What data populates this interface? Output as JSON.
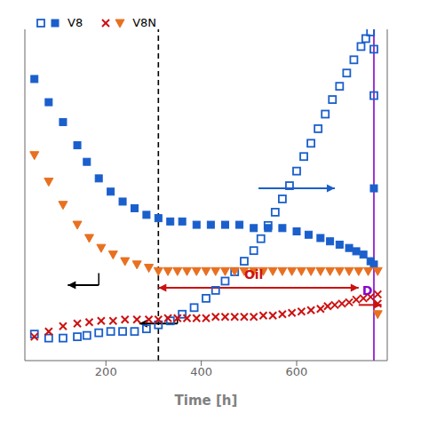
{
  "chart_data": {
    "type": "scatter",
    "xlabel": "Time [h]",
    "xlim": [
      30,
      790
    ],
    "xticks": [
      200,
      400,
      600
    ],
    "ylim": [
      0,
      2.5
    ],
    "yticks": [],
    "y2lim": [
      0,
      1.0
    ],
    "y2ticks": [],
    "tick_labels": "x",
    "grid": false,
    "legend": "upper left",
    "series": [
      {
        "name": "V8",
        "color": "#1a5fcc",
        "marker": "square_open",
        "axis": "y",
        "x": [
          50,
          80,
          110,
          140,
          160,
          185,
          210,
          235,
          260,
          285,
          310,
          335,
          360,
          385,
          410,
          430,
          450,
          470,
          490,
          510,
          525,
          540,
          555,
          570,
          585,
          600,
          615,
          630,
          645,
          660,
          675,
          690,
          705,
          720,
          735,
          745,
          755,
          762,
          762
        ],
        "values": [
          0.2,
          0.17,
          0.17,
          0.18,
          0.19,
          0.21,
          0.22,
          0.22,
          0.22,
          0.24,
          0.27,
          0.3,
          0.35,
          0.4,
          0.47,
          0.53,
          0.6,
          0.67,
          0.75,
          0.83,
          0.92,
          1.02,
          1.12,
          1.22,
          1.32,
          1.43,
          1.54,
          1.64,
          1.75,
          1.86,
          1.97,
          2.07,
          2.17,
          2.27,
          2.37,
          2.43,
          2.48,
          2.35,
          2.0
        ]
      },
      {
        "name": "V8N",
        "color": "#cc1111",
        "marker": "x",
        "axis": "y",
        "x": [
          50,
          80,
          110,
          140,
          165,
          190,
          215,
          240,
          265,
          290,
          310,
          330,
          350,
          370,
          390,
          410,
          430,
          450,
          470,
          490,
          510,
          530,
          550,
          570,
          590,
          610,
          630,
          650,
          665,
          680,
          695,
          710,
          725,
          740,
          755,
          770,
          770
        ],
        "values": [
          0.18,
          0.22,
          0.26,
          0.28,
          0.29,
          0.3,
          0.3,
          0.31,
          0.31,
          0.31,
          0.31,
          0.32,
          0.32,
          0.32,
          0.32,
          0.32,
          0.33,
          0.33,
          0.33,
          0.33,
          0.33,
          0.34,
          0.34,
          0.35,
          0.36,
          0.37,
          0.38,
          0.39,
          0.41,
          0.42,
          0.43,
          0.44,
          0.46,
          0.47,
          0.48,
          0.5,
          0.43
        ]
      },
      {
        "name": "V8",
        "color": "#1a5fcc",
        "marker": "square",
        "axis": "y2",
        "x": [
          50,
          80,
          110,
          140,
          160,
          185,
          210,
          235,
          260,
          285,
          310,
          335,
          360,
          390,
          420,
          450,
          480,
          510,
          540,
          570,
          600,
          625,
          650,
          670,
          690,
          710,
          725,
          740,
          755,
          762,
          762
        ],
        "values": [
          0.85,
          0.78,
          0.72,
          0.65,
          0.6,
          0.55,
          0.51,
          0.48,
          0.46,
          0.44,
          0.43,
          0.42,
          0.42,
          0.41,
          0.41,
          0.41,
          0.41,
          0.4,
          0.4,
          0.4,
          0.39,
          0.38,
          0.37,
          0.36,
          0.35,
          0.34,
          0.33,
          0.32,
          0.3,
          0.29,
          0.52
        ]
      },
      {
        "name": "V8N",
        "color": "#e87020",
        "marker": "triangle_down",
        "axis": "y2",
        "x": [
          50,
          80,
          110,
          140,
          165,
          190,
          215,
          240,
          265,
          290,
          310,
          330,
          350,
          370,
          390,
          410,
          430,
          450,
          470,
          490,
          510,
          530,
          550,
          570,
          590,
          610,
          630,
          650,
          670,
          690,
          710,
          730,
          750,
          770,
          770
        ],
        "values": [
          0.62,
          0.54,
          0.47,
          0.41,
          0.37,
          0.34,
          0.32,
          0.3,
          0.29,
          0.28,
          0.27,
          0.27,
          0.27,
          0.27,
          0.27,
          0.27,
          0.27,
          0.27,
          0.27,
          0.27,
          0.27,
          0.27,
          0.27,
          0.27,
          0.27,
          0.27,
          0.27,
          0.27,
          0.27,
          0.27,
          0.27,
          0.27,
          0.27,
          0.27,
          0.14
        ]
      }
    ],
    "vlines": [
      {
        "x": 310,
        "color": "#000000",
        "line_style": "dashed"
      },
      {
        "x": 762,
        "color": "#8800cc",
        "line_style": "solid"
      }
    ],
    "annotations": [
      {
        "text": "Oil",
        "x": 510,
        "y": 0.6,
        "color": "#cc1111"
      },
      {
        "text": "D",
        "x": 748,
        "y": 0.48,
        "color": "#8800cc"
      }
    ],
    "arrows": [
      {
        "x1": 310,
        "x2": 730,
        "y": 0.55,
        "color": "#cc1111",
        "style": "both"
      },
      {
        "x1": 520,
        "x2": 680,
        "y": 1.3,
        "color": "#1a5fcc",
        "style": "end"
      },
      {
        "x1": 730,
        "x2": 778,
        "y": 0.42,
        "color": "#cc1111",
        "style": "end"
      },
      {
        "x1": 185,
        "x2": 120,
        "y": 0.57,
        "color": "#000000",
        "style": "end"
      },
      {
        "x1": 350,
        "x2": 270,
        "y": 0.28,
        "color": "#000000",
        "style": "end"
      }
    ],
    "segments": [
      {
        "x": 185,
        "y1": 0.57,
        "y2": 0.66,
        "color": "#000000"
      },
      {
        "x": 350,
        "y1": 0.28,
        "y2": 0.32,
        "color": "#000000"
      }
    ]
  }
}
